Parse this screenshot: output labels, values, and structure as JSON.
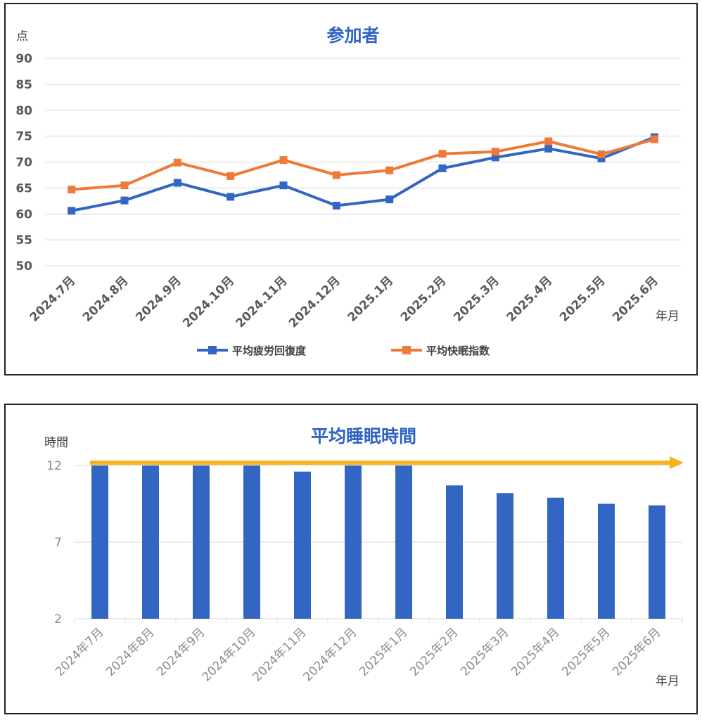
{
  "chart_data": [
    {
      "type": "line",
      "title": "参加者",
      "ylabel": "点",
      "xlabel": "年月",
      "ylim": [
        50,
        90
      ],
      "yticks": [
        50,
        55,
        60,
        65,
        70,
        75,
        80,
        85,
        90
      ],
      "grid": true,
      "legend_position": "bottom",
      "categories": [
        "2024.7月",
        "2024.8月",
        "2024.9月",
        "2024.10月",
        "2024.11月",
        "2024.12月",
        "2025.1月",
        "2025.2月",
        "2025.3月",
        "2025.4月",
        "2025.5月",
        "2025.6月"
      ],
      "series": [
        {
          "name": "平均疲労回復度",
          "color": "#3366C3",
          "values": [
            60.6,
            62.6,
            66.0,
            63.3,
            65.5,
            61.6,
            62.8,
            68.8,
            70.9,
            72.6,
            70.7,
            74.8
          ]
        },
        {
          "name": "平均快眠指数",
          "color": "#EE7A3A",
          "values": [
            64.7,
            65.5,
            69.9,
            67.3,
            70.4,
            67.5,
            68.4,
            71.6,
            72.0,
            74.0,
            71.5,
            74.4
          ]
        }
      ]
    },
    {
      "type": "bar",
      "title": "平均睡眠時間",
      "ylabel": "時間",
      "xlabel": "年月",
      "ylim": [
        2,
        12
      ],
      "yticks": [
        2,
        7,
        12
      ],
      "grid": true,
      "bar_color": "#3366C3",
      "arrow_color": "#F5B41F",
      "categories": [
        "2024年7月",
        "2024年8月",
        "2024年9月",
        "2024年10月",
        "2024年11月",
        "2024年12月",
        "2025年1月",
        "2025年2月",
        "2025年3月",
        "2025年4月",
        "2025年5月",
        "2025年6月"
      ],
      "values": [
        12.0,
        12.0,
        12.0,
        12.0,
        11.6,
        12.0,
        12.0,
        10.7,
        10.2,
        9.9,
        9.5,
        9.4
      ]
    }
  ]
}
